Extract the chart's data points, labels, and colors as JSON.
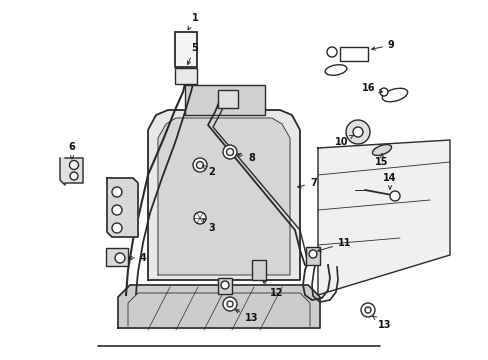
{
  "bg_color": "#ffffff",
  "line_color": "#2a2a2a",
  "label_color": "#111111",
  "figsize": [
    4.89,
    3.6
  ],
  "dpi": 100,
  "label_fontsize": 7.0
}
